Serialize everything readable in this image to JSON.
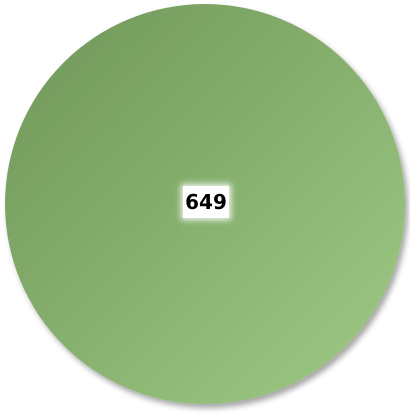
{
  "chart_data": {
    "type": "pie",
    "slices": [
      {
        "label": "",
        "value": 649,
        "value_label": "649",
        "color": "#84b06e"
      }
    ],
    "legend": "none",
    "gradient": {
      "from": "#6f9658",
      "to": "#9fcb86"
    }
  }
}
